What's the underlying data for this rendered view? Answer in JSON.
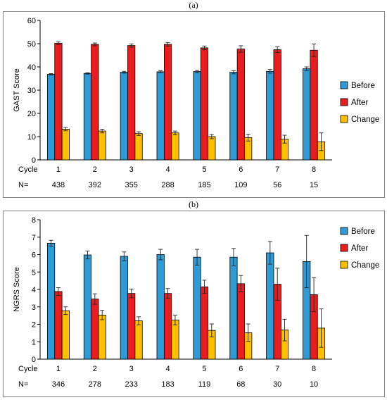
{
  "panels": {
    "a": {
      "label": "(a)"
    },
    "b": {
      "label": "(b)"
    }
  },
  "chart_data": [
    {
      "type": "bar",
      "ylabel": "GAST Score",
      "ylim": [
        0,
        60
      ],
      "yticks": [
        0,
        10,
        20,
        30,
        40,
        50,
        60
      ],
      "grid": false,
      "legend_position": "right",
      "categories_label": "Cycle",
      "categories": [
        "1",
        "2",
        "3",
        "4",
        "5",
        "6",
        "7",
        "8"
      ],
      "n_label": "N=",
      "n_values": [
        "438",
        "392",
        "355",
        "288",
        "185",
        "109",
        "56",
        "15"
      ],
      "series": [
        {
          "name": "Before",
          "color": "#2E9BD6",
          "values": [
            36.8,
            37.2,
            37.7,
            37.9,
            38.0,
            37.7,
            38.1,
            39.2
          ],
          "errors": [
            0.3,
            0.3,
            0.4,
            0.4,
            0.5,
            0.7,
            0.8,
            0.8
          ]
        },
        {
          "name": "After",
          "color": "#E81E1E",
          "values": [
            50.2,
            49.7,
            49.2,
            49.7,
            48.2,
            47.7,
            47.4,
            47.2
          ],
          "errors": [
            0.6,
            0.6,
            0.7,
            0.8,
            0.8,
            1.4,
            1.2,
            2.7
          ]
        },
        {
          "name": "Change",
          "color": "#FFC000",
          "values": [
            13.2,
            12.4,
            11.3,
            11.6,
            10.0,
            9.6,
            8.9,
            7.8
          ],
          "errors": [
            0.7,
            0.8,
            0.8,
            0.8,
            0.9,
            1.5,
            1.7,
            3.8
          ]
        }
      ]
    },
    {
      "type": "bar",
      "ylabel": "NGRS Score",
      "ylim": [
        0,
        8
      ],
      "yticks": [
        0,
        1,
        2,
        3,
        4,
        5,
        6,
        7,
        8
      ],
      "grid": false,
      "legend_position": "right",
      "categories_label": "Cycle",
      "categories": [
        "1",
        "2",
        "3",
        "4",
        "5",
        "6",
        "7",
        "8"
      ],
      "n_label": "N=",
      "n_values": [
        "346",
        "278",
        "233",
        "183",
        "119",
        "68",
        "30",
        "10"
      ],
      "series": [
        {
          "name": "Before",
          "color": "#2E9BD6",
          "values": [
            6.65,
            5.98,
            5.9,
            6.0,
            5.85,
            5.85,
            6.1,
            5.6
          ],
          "errors": [
            0.17,
            0.23,
            0.25,
            0.3,
            0.45,
            0.5,
            0.65,
            1.5
          ]
        },
        {
          "name": "After",
          "color": "#E81E1E",
          "values": [
            3.88,
            3.45,
            3.77,
            3.77,
            4.15,
            4.33,
            4.3,
            3.7
          ],
          "errors": [
            0.22,
            0.3,
            0.25,
            0.28,
            0.38,
            0.47,
            0.92,
            0.98
          ]
        },
        {
          "name": "Change",
          "color": "#FFC000",
          "values": [
            2.78,
            2.53,
            2.2,
            2.25,
            1.65,
            1.52,
            1.67,
            1.78
          ],
          "errors": [
            0.22,
            0.27,
            0.23,
            0.28,
            0.37,
            0.5,
            0.62,
            1.1
          ]
        }
      ]
    }
  ]
}
